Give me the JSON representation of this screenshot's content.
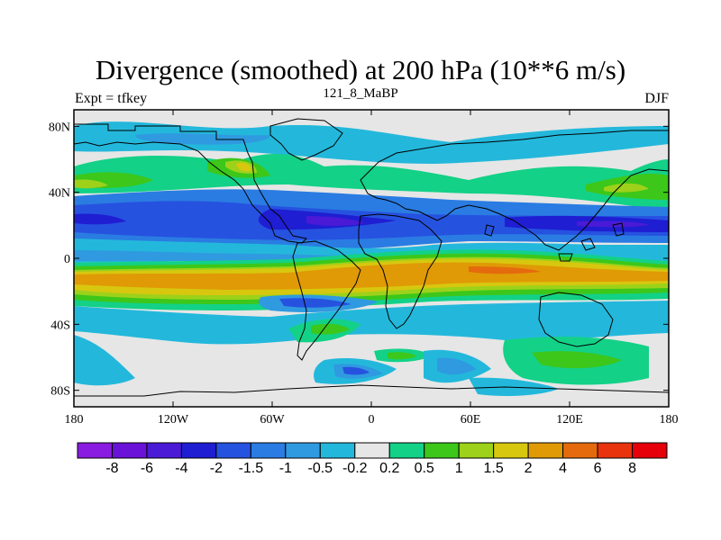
{
  "header": {
    "title": "Divergence (smoothed) at 200 hPa (10**6 m/s)",
    "left": "Expt = tfkey",
    "center": "121_8_MaBP",
    "right": "DJF"
  },
  "map": {
    "type": "filled-contour",
    "projection": "cylindrical-equidistant",
    "lon_range": [
      -180,
      180
    ],
    "lat_range": [
      -90,
      90
    ],
    "x_ticks": [
      "180",
      "120W",
      "60W",
      "0",
      "60E",
      "120E",
      "180"
    ],
    "y_ticks": [
      "80N",
      "40N",
      "0",
      "40S",
      "80S"
    ],
    "background_color": "#e6e6e6"
  },
  "colorbar": {
    "labels": [
      "-8",
      "-6",
      "-4",
      "-2",
      "-1.5",
      "-1",
      "-0.5",
      "-0.2",
      "0.2",
      "0.5",
      "1",
      "1.5",
      "2",
      "4",
      "6",
      "8"
    ],
    "colors": [
      "#8a1be0",
      "#6a12d8",
      "#4a1ad6",
      "#1f1ed2",
      "#2652e0",
      "#2a7ce2",
      "#2f9ae0",
      "#23b8db",
      "#e6e6e6",
      "#13d187",
      "#3cc71a",
      "#9dd11a",
      "#d8c70f",
      "#df9a06",
      "#e56a0d",
      "#e8330c",
      "#e5000a"
    ]
  }
}
